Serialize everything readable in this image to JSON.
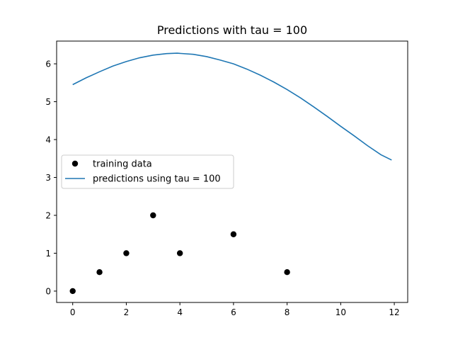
{
  "chart_data": {
    "type": "scatter",
    "title": "Predictions with tau = 100",
    "xlabel": "",
    "ylabel": "",
    "xlim": [
      -0.6,
      12.5
    ],
    "ylim": [
      -0.3,
      6.6
    ],
    "xticks": [
      0,
      2,
      4,
      6,
      8,
      10,
      12
    ],
    "yticks": [
      0,
      1,
      2,
      3,
      4,
      5,
      6
    ],
    "grid": false,
    "legend_position": "center-left",
    "series": [
      {
        "name": "training data",
        "kind": "scatter",
        "color": "#000000",
        "points": [
          [
            0,
            0
          ],
          [
            1,
            0.5
          ],
          [
            2,
            1
          ],
          [
            3,
            2
          ],
          [
            4,
            1
          ],
          [
            6,
            1.5
          ],
          [
            8,
            0.5
          ]
        ]
      },
      {
        "name": "predictions using tau = 100",
        "kind": "line",
        "color": "#1f77b4",
        "points": [
          [
            0,
            5.45
          ],
          [
            0.5,
            5.63
          ],
          [
            1,
            5.79
          ],
          [
            1.5,
            5.94
          ],
          [
            2,
            6.06
          ],
          [
            2.5,
            6.16
          ],
          [
            3,
            6.23
          ],
          [
            3.5,
            6.27
          ],
          [
            3.9,
            6.28
          ],
          [
            4.5,
            6.25
          ],
          [
            5,
            6.19
          ],
          [
            5.5,
            6.1
          ],
          [
            6,
            6.0
          ],
          [
            6.5,
            5.86
          ],
          [
            7,
            5.7
          ],
          [
            7.5,
            5.52
          ],
          [
            8,
            5.32
          ],
          [
            8.5,
            5.1
          ],
          [
            9,
            4.86
          ],
          [
            9.5,
            4.61
          ],
          [
            10,
            4.35
          ],
          [
            10.5,
            4.1
          ],
          [
            11,
            3.84
          ],
          [
            11.5,
            3.6
          ],
          [
            11.9,
            3.46
          ]
        ]
      }
    ]
  }
}
